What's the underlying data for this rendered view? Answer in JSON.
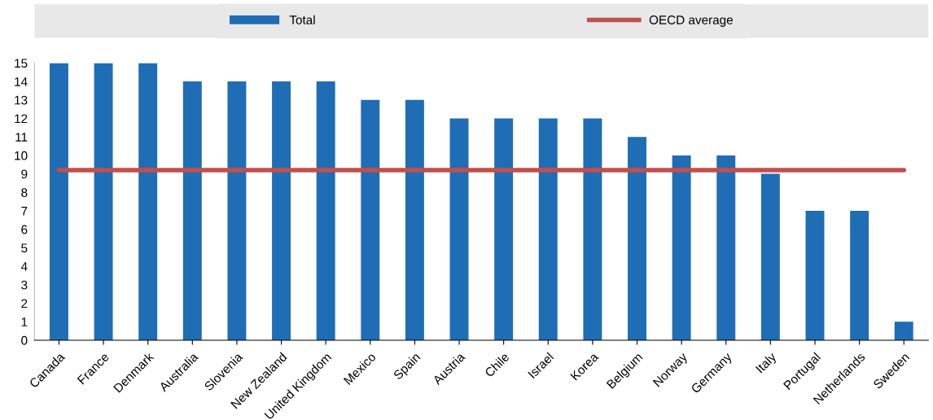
{
  "chart_data": {
    "type": "bar",
    "categories": [
      "Canada",
      "France",
      "Denmark",
      "Australia",
      "Slovenia",
      "New Zealand",
      "United Kingdom",
      "Mexico",
      "Spain",
      "Austria",
      "Chile",
      "Israel",
      "Korea",
      "Belgium",
      "Norway",
      "Germany",
      "Italy",
      "Portugal",
      "Netherlands",
      "Sweden"
    ],
    "series": [
      {
        "name": "Total",
        "color": "#1f6db5",
        "values": [
          15,
          15,
          15,
          14,
          14,
          14,
          14,
          13,
          13,
          12,
          12,
          12,
          12,
          11,
          10,
          10,
          9,
          7,
          7,
          1
        ]
      },
      {
        "name": "OECD average",
        "type": "line",
        "color": "#c0504d",
        "values": [
          9.2,
          9.2,
          9.2,
          9.2,
          9.2,
          9.2,
          9.2,
          9.2,
          9.2,
          9.2,
          9.2,
          9.2,
          9.2,
          9.2,
          9.2,
          9.2,
          9.2,
          9.2,
          9.2,
          9.2
        ]
      }
    ],
    "ylim": [
      0,
      15
    ],
    "yticks": [
      0,
      1,
      2,
      3,
      4,
      5,
      6,
      7,
      8,
      9,
      10,
      11,
      12,
      13,
      14,
      15
    ],
    "legend": "top"
  }
}
